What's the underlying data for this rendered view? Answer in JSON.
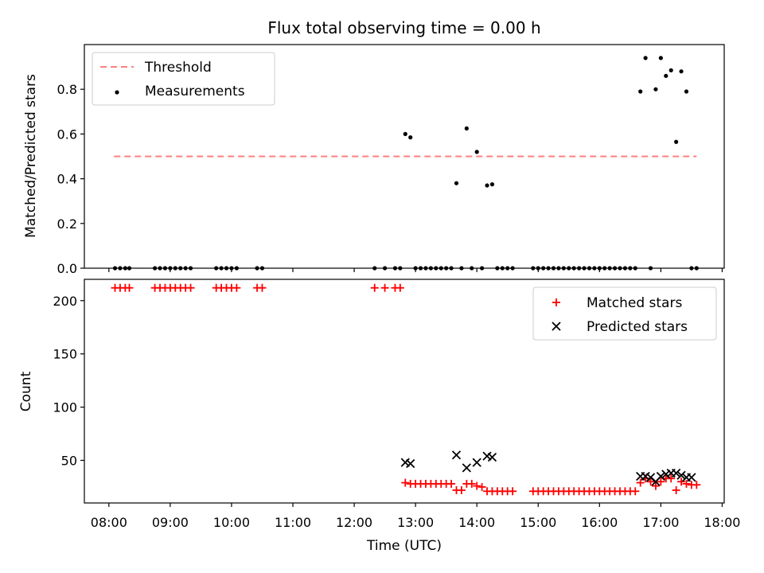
{
  "title": "Flux total observing time = 0.00 h",
  "colors": {
    "threshold": "#ff7f7f",
    "measurement": "#000000",
    "matched": "#ff0000",
    "predicted": "#000000"
  },
  "chart_data": [
    {
      "type": "scatter",
      "ylabel": "Matched/Predicted stars",
      "xlim": [
        "07:36",
        "18:02"
      ],
      "ylim": [
        0,
        1.0
      ],
      "yticks": [
        "0.0",
        "0.2",
        "0.4",
        "0.6",
        "0.8"
      ],
      "grid": false,
      "legend": {
        "placement": "top-left",
        "entries": [
          "Threshold",
          "Measurements"
        ]
      },
      "threshold": {
        "name": "Threshold",
        "value": 0.5,
        "x_start": "08:05",
        "x_end": "17:35",
        "style": "dashed"
      },
      "series": [
        {
          "name": "Measurements",
          "points": [
            [
              "08:06",
              0
            ],
            [
              "08:11",
              0
            ],
            [
              "08:16",
              0
            ],
            [
              "08:20",
              0
            ],
            [
              "08:45",
              0
            ],
            [
              "08:50",
              0
            ],
            [
              "08:55",
              0
            ],
            [
              "09:00",
              0
            ],
            [
              "09:05",
              0
            ],
            [
              "09:10",
              0
            ],
            [
              "09:15",
              0
            ],
            [
              "09:20",
              0
            ],
            [
              "09:45",
              0
            ],
            [
              "09:50",
              0
            ],
            [
              "09:55",
              0
            ],
            [
              "10:00",
              0
            ],
            [
              "10:05",
              0
            ],
            [
              "10:25",
              0
            ],
            [
              "10:30",
              0
            ],
            [
              "12:20",
              0
            ],
            [
              "12:30",
              0
            ],
            [
              "12:40",
              0
            ],
            [
              "12:45",
              0
            ],
            [
              "12:50",
              0.6
            ],
            [
              "12:55",
              0.585
            ],
            [
              "13:00",
              0
            ],
            [
              "13:05",
              0
            ],
            [
              "13:10",
              0
            ],
            [
              "13:15",
              0
            ],
            [
              "13:20",
              0
            ],
            [
              "13:25",
              0
            ],
            [
              "13:30",
              0
            ],
            [
              "13:35",
              0
            ],
            [
              "13:40",
              0.38
            ],
            [
              "13:45",
              0
            ],
            [
              "13:50",
              0.625
            ],
            [
              "13:55",
              0
            ],
            [
              "14:00",
              0.52
            ],
            [
              "14:05",
              0
            ],
            [
              "14:10",
              0.37
            ],
            [
              "14:15",
              0.375
            ],
            [
              "14:20",
              0
            ],
            [
              "14:25",
              0
            ],
            [
              "14:30",
              0
            ],
            [
              "14:35",
              0
            ],
            [
              "14:55",
              0
            ],
            [
              "15:00",
              0
            ],
            [
              "15:05",
              0
            ],
            [
              "15:10",
              0
            ],
            [
              "15:15",
              0
            ],
            [
              "15:20",
              0
            ],
            [
              "15:25",
              0
            ],
            [
              "15:30",
              0
            ],
            [
              "15:35",
              0
            ],
            [
              "15:40",
              0
            ],
            [
              "15:45",
              0
            ],
            [
              "15:50",
              0
            ],
            [
              "15:55",
              0
            ],
            [
              "16:00",
              0
            ],
            [
              "16:05",
              0
            ],
            [
              "16:10",
              0
            ],
            [
              "16:15",
              0
            ],
            [
              "16:20",
              0
            ],
            [
              "16:25",
              0
            ],
            [
              "16:30",
              0
            ],
            [
              "16:35",
              0
            ],
            [
              "16:40",
              0.79
            ],
            [
              "16:45",
              0.94
            ],
            [
              "16:50",
              0
            ],
            [
              "16:55",
              0.8
            ],
            [
              "17:00",
              0.94
            ],
            [
              "17:05",
              0.86
            ],
            [
              "17:10",
              0.885
            ],
            [
              "17:15",
              0.565
            ],
            [
              "17:20",
              0.88
            ],
            [
              "17:25",
              0.79
            ],
            [
              "17:30",
              0
            ],
            [
              "17:35",
              0
            ]
          ]
        }
      ]
    },
    {
      "type": "scatter",
      "xlabel": "Time (UTC)",
      "ylabel": "Count",
      "xlim": [
        "07:36",
        "18:02"
      ],
      "ylim": [
        10,
        220
      ],
      "yticks": [
        "50",
        "100",
        "150",
        "200"
      ],
      "xticks": [
        "08:00",
        "09:00",
        "10:00",
        "11:00",
        "12:00",
        "13:00",
        "14:00",
        "15:00",
        "16:00",
        "17:00",
        "18:00"
      ],
      "grid": false,
      "legend": {
        "placement": "top-right",
        "entries": [
          "Matched stars",
          "Predicted stars"
        ]
      },
      "series": [
        {
          "name": "Matched stars",
          "marker": "+",
          "points": [
            [
              "08:06",
              212
            ],
            [
              "08:11",
              212
            ],
            [
              "08:16",
              212
            ],
            [
              "08:20",
              212
            ],
            [
              "08:45",
              212
            ],
            [
              "08:50",
              212
            ],
            [
              "08:55",
              212
            ],
            [
              "09:00",
              212
            ],
            [
              "09:05",
              212
            ],
            [
              "09:10",
              212
            ],
            [
              "09:15",
              212
            ],
            [
              "09:20",
              212
            ],
            [
              "09:45",
              212
            ],
            [
              "09:50",
              212
            ],
            [
              "09:55",
              212
            ],
            [
              "10:00",
              212
            ],
            [
              "10:05",
              212
            ],
            [
              "10:25",
              212
            ],
            [
              "10:30",
              212
            ],
            [
              "12:20",
              212
            ],
            [
              "12:30",
              212
            ],
            [
              "12:40",
              212
            ],
            [
              "12:45",
              212
            ],
            [
              "12:50",
              29
            ],
            [
              "12:55",
              28
            ],
            [
              "13:00",
              28
            ],
            [
              "13:05",
              28
            ],
            [
              "13:10",
              28
            ],
            [
              "13:15",
              28
            ],
            [
              "13:20",
              28
            ],
            [
              "13:25",
              28
            ],
            [
              "13:30",
              28
            ],
            [
              "13:35",
              28
            ],
            [
              "13:40",
              22
            ],
            [
              "13:45",
              22
            ],
            [
              "13:50",
              28
            ],
            [
              "13:55",
              28
            ],
            [
              "14:00",
              26
            ],
            [
              "14:05",
              25
            ],
            [
              "14:10",
              21
            ],
            [
              "14:15",
              21
            ],
            [
              "14:20",
              21
            ],
            [
              "14:25",
              21
            ],
            [
              "14:30",
              21
            ],
            [
              "14:35",
              21
            ],
            [
              "14:55",
              21
            ],
            [
              "15:00",
              21
            ],
            [
              "15:05",
              21
            ],
            [
              "15:10",
              21
            ],
            [
              "15:15",
              21
            ],
            [
              "15:20",
              21
            ],
            [
              "15:25",
              21
            ],
            [
              "15:30",
              21
            ],
            [
              "15:35",
              21
            ],
            [
              "15:40",
              21
            ],
            [
              "15:45",
              21
            ],
            [
              "15:50",
              21
            ],
            [
              "15:55",
              21
            ],
            [
              "16:00",
              21
            ],
            [
              "16:05",
              21
            ],
            [
              "16:10",
              21
            ],
            [
              "16:15",
              21
            ],
            [
              "16:20",
              21
            ],
            [
              "16:25",
              21
            ],
            [
              "16:30",
              21
            ],
            [
              "16:35",
              21
            ],
            [
              "16:40",
              29
            ],
            [
              "16:45",
              33
            ],
            [
              "16:50",
              30
            ],
            [
              "16:55",
              26
            ],
            [
              "17:00",
              30
            ],
            [
              "17:05",
              33
            ],
            [
              "17:10",
              33
            ],
            [
              "17:15",
              22
            ],
            [
              "17:20",
              30
            ],
            [
              "17:25",
              28
            ],
            [
              "17:30",
              27
            ],
            [
              "17:35",
              27
            ]
          ]
        },
        {
          "name": "Predicted stars",
          "marker": "x",
          "points": [
            [
              "12:50",
              48
            ],
            [
              "12:55",
              47
            ],
            [
              "13:40",
              55
            ],
            [
              "13:50",
              43
            ],
            [
              "14:00",
              48
            ],
            [
              "14:10",
              54
            ],
            [
              "14:15",
              53
            ],
            [
              "16:40",
              35
            ],
            [
              "16:45",
              35
            ],
            [
              "16:50",
              34
            ],
            [
              "16:55",
              30
            ],
            [
              "17:00",
              35
            ],
            [
              "17:05",
              37
            ],
            [
              "17:10",
              38
            ],
            [
              "17:15",
              38
            ],
            [
              "17:20",
              36
            ],
            [
              "17:25",
              34
            ],
            [
              "17:30",
              34
            ]
          ]
        }
      ]
    }
  ]
}
